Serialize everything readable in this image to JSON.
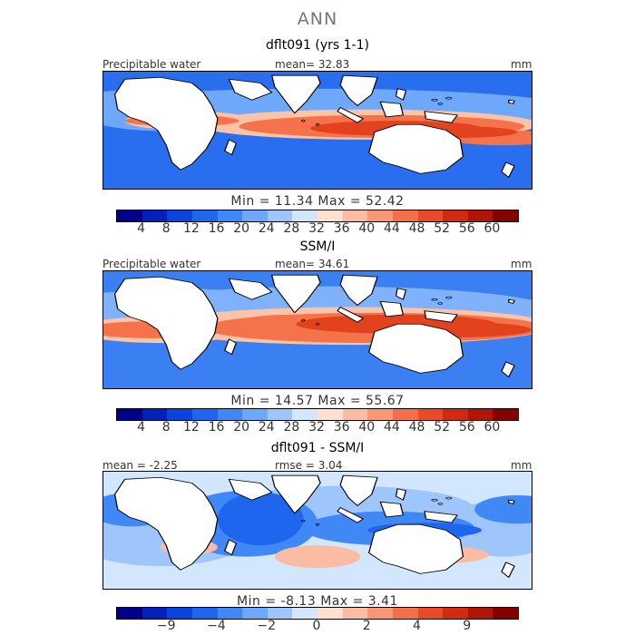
{
  "header": {
    "title": "ANN"
  },
  "panels": [
    {
      "title": "dflt091 (yrs 1-1)",
      "left_label": "Precipitable water",
      "center_label": "mean=  32.83",
      "right_label": "mm",
      "minmax": "Min =  11.34  Max =  52.42"
    },
    {
      "title": "SSM/I",
      "left_label": "Precipitable water",
      "center_label": "mean=  34.61",
      "right_label": "mm",
      "minmax": "Min =  14.57  Max =  55.67"
    },
    {
      "title": "dflt091 - SSM/I",
      "left_label": "mean =  -2.25",
      "center_label": "rmse =   3.04",
      "right_label": "mm",
      "minmax": "Min =  -8.13  Max =   3.41"
    }
  ],
  "colorbars": {
    "abs": {
      "colors": [
        "#00008b",
        "#0022bb",
        "#0a44dd",
        "#1f66ee",
        "#3f88f5",
        "#6ea8fa",
        "#9ec6fc",
        "#d2e6fd",
        "#fde0cf",
        "#fcbca3",
        "#fa9674",
        "#f5704a",
        "#ea4a26",
        "#d22a10",
        "#b01508",
        "#850000"
      ],
      "ticks": [
        "4",
        "8",
        "12",
        "16",
        "20",
        "24",
        "28",
        "32",
        "36",
        "40",
        "44",
        "48",
        "52",
        "56",
        "60"
      ]
    },
    "diff": {
      "colors": [
        "#00008b",
        "#0022bb",
        "#0a44dd",
        "#1f66ee",
        "#3f88f5",
        "#6ea8fa",
        "#9ec6fc",
        "#d2e6fd",
        "#fde0cf",
        "#fcbca3",
        "#fa9674",
        "#f5704a",
        "#ea4a26",
        "#d22a10",
        "#b01508",
        "#850000"
      ],
      "ticks": [
        "−9",
        "−4",
        "−2",
        "0",
        "2",
        "4",
        "9"
      ],
      "tick_boundaries": [
        2,
        4,
        6,
        8,
        10,
        12,
        14
      ]
    }
  },
  "fields": {
    "p1": [
      {
        "color": "#2a6ef0",
        "ellipses": [
          [
            0,
            0,
            300,
            40
          ],
          [
            0,
            84,
            300,
            40
          ],
          [
            240,
            50,
            60,
            35
          ]
        ]
      },
      {
        "color": "#6ea8fa",
        "ellipses": [
          [
            150,
            40,
            180,
            22
          ],
          [
            45,
            45,
            60,
            18
          ],
          [
            10,
            35,
            25,
            15
          ]
        ]
      },
      {
        "color": "#fbc3a8",
        "ellipses": [
          [
            185,
            56,
            120,
            16
          ],
          [
            60,
            52,
            45,
            10
          ]
        ]
      },
      {
        "color": "#f4734a",
        "ellipses": [
          [
            195,
            58,
            100,
            12
          ],
          [
            55,
            52,
            40,
            6
          ],
          [
            280,
            70,
            40,
            8
          ]
        ]
      },
      {
        "color": "#e2421d",
        "ellipses": [
          [
            205,
            60,
            60,
            8
          ],
          [
            250,
            64,
            40,
            6
          ]
        ]
      }
    ],
    "p2": [
      {
        "color": "#3a80f2",
        "ellipses": [
          [
            0,
            0,
            300,
            38
          ],
          [
            0,
            84,
            300,
            38
          ]
        ]
      },
      {
        "color": "#7fb2fa",
        "ellipses": [
          [
            160,
            44,
            160,
            28
          ],
          [
            50,
            38,
            70,
            20
          ],
          [
            10,
            40,
            30,
            18
          ]
        ]
      },
      {
        "color": "#fbc3a8",
        "ellipses": [
          [
            175,
            58,
            140,
            20
          ],
          [
            40,
            62,
            60,
            14
          ]
        ]
      },
      {
        "color": "#f4734a",
        "ellipses": [
          [
            190,
            60,
            120,
            16
          ],
          [
            35,
            62,
            50,
            9
          ],
          [
            130,
            58,
            40,
            12
          ]
        ]
      },
      {
        "color": "#e2421d",
        "ellipses": [
          [
            205,
            56,
            70,
            10
          ],
          [
            250,
            62,
            50,
            8
          ]
        ]
      }
    ],
    "p3": [
      {
        "color": "#d2e6fd",
        "ellipses": [
          [
            150,
            60,
            170,
            70
          ]
        ]
      },
      {
        "color": "#9ec6fc",
        "ellipses": [
          [
            40,
            60,
            70,
            40
          ],
          [
            170,
            40,
            90,
            25
          ],
          [
            280,
            60,
            40,
            30
          ]
        ]
      },
      {
        "color": "#3f88f5",
        "ellipses": [
          [
            20,
            40,
            30,
            18
          ],
          [
            100,
            55,
            50,
            35
          ],
          [
            200,
            60,
            60,
            18
          ],
          [
            290,
            40,
            30,
            15
          ]
        ]
      },
      {
        "color": "#1f66ee",
        "ellipses": [
          [
            110,
            50,
            30,
            28
          ],
          [
            225,
            62,
            40,
            8
          ]
        ]
      },
      {
        "color": "#fcbca3",
        "ellipses": [
          [
            150,
            90,
            30,
            12
          ],
          [
            230,
            88,
            40,
            10
          ],
          [
            60,
            80,
            20,
            8
          ]
        ]
      }
    ]
  }
}
